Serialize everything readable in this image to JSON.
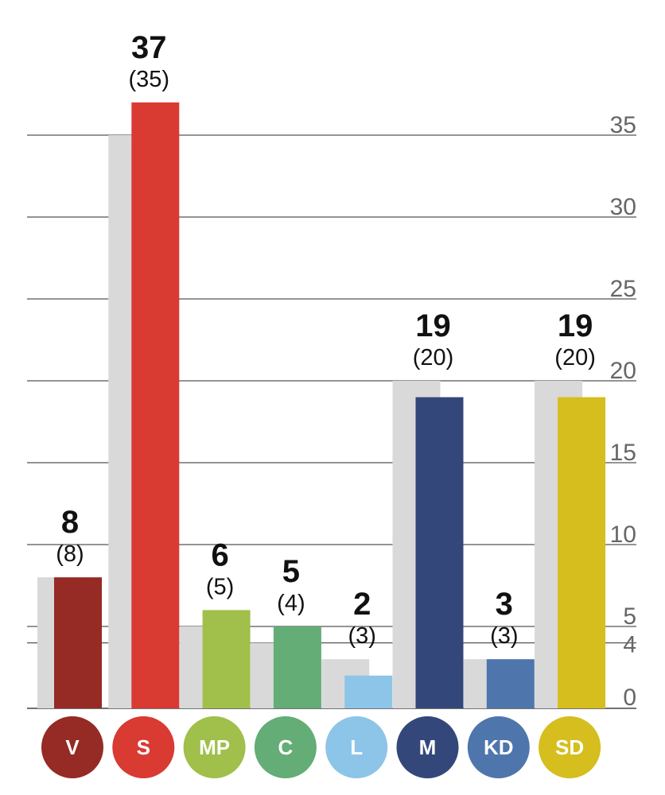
{
  "chart_data": {
    "type": "bar",
    "title": "",
    "xlabel": "",
    "ylabel": "",
    "categories": [
      "V",
      "S",
      "MP",
      "C",
      "L",
      "M",
      "KD",
      "SD"
    ],
    "series": [
      {
        "values": [
          8,
          37,
          6,
          5,
          2,
          19,
          3,
          19
        ]
      },
      {
        "values": [
          8,
          35,
          5,
          4,
          3,
          20,
          3,
          20
        ]
      }
    ],
    "value_labels": [
      "8",
      "37",
      "6",
      "5",
      "2",
      "19",
      "3",
      "19"
    ],
    "previous_labels": [
      "(8)",
      "(35)",
      "(5)",
      "(4)",
      "(3)",
      "(20)",
      "(3)",
      "(20)"
    ],
    "colors": [
      "#962a25",
      "#d93a32",
      "#a0bf4b",
      "#64ad76",
      "#8cc5e8",
      "#34477a",
      "#4f75ad",
      "#d5be1e"
    ],
    "previous_color": "#d9d9d9",
    "ylim": [
      0,
      37
    ],
    "y_ticks": [
      {
        "value": 0,
        "label": "0"
      },
      {
        "value": 4,
        "label": "4"
      },
      {
        "value": 5,
        "label": "5"
      },
      {
        "value": 10,
        "label": "10"
      },
      {
        "value": 15,
        "label": "15"
      },
      {
        "value": 20,
        "label": "20"
      },
      {
        "value": 25,
        "label": "25"
      },
      {
        "value": 30,
        "label": "30"
      },
      {
        "value": 35,
        "label": "35"
      }
    ],
    "grid": true,
    "y_axis_side": "right"
  }
}
